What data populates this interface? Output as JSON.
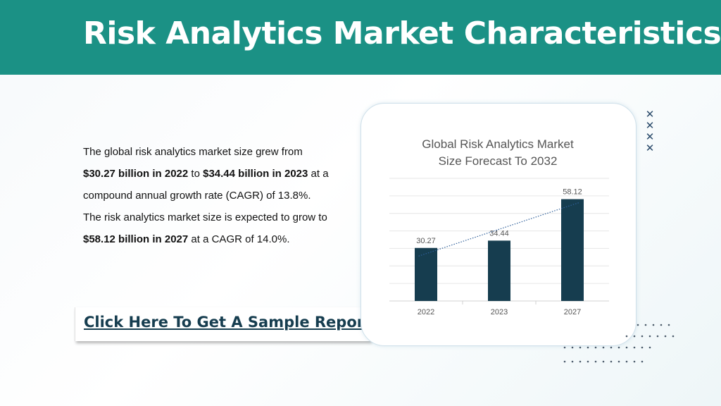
{
  "header": {
    "title": "Risk Analytics Market Characteristics:"
  },
  "description": {
    "p1": "The global risk analytics market size grew from ",
    "b1": "$30.27 billion in 2022",
    "p2": " to ",
    "b2": "$34.44 billion in 2023",
    "p3": " at a compound annual growth rate (CAGR) of 13.8%. The risk analytics market size is expected to grow to ",
    "b3": "$58.12 billion in 2027",
    "p4": " at a CAGR of 14.0%."
  },
  "cta": {
    "label": "Click Here To Get A Sample Report"
  },
  "colors": {
    "header": "#1b9185",
    "bar": "#163d4f",
    "link": "#163d4f"
  },
  "chart_data": {
    "type": "bar",
    "title": "Global Risk Analytics Market Size Forecast To 2032",
    "title_lines": [
      "Global Risk Analytics Market",
      "Size Forecast To 2032"
    ],
    "categories": [
      "2022",
      "2023",
      "2027"
    ],
    "values": [
      30.27,
      34.44,
      58.12
    ],
    "value_labels": [
      "30.27",
      "34.44",
      "58.12"
    ],
    "ylim": [
      0,
      70
    ],
    "grid": true,
    "trendline": "dotted linear",
    "xlabel": "",
    "ylabel": ""
  }
}
